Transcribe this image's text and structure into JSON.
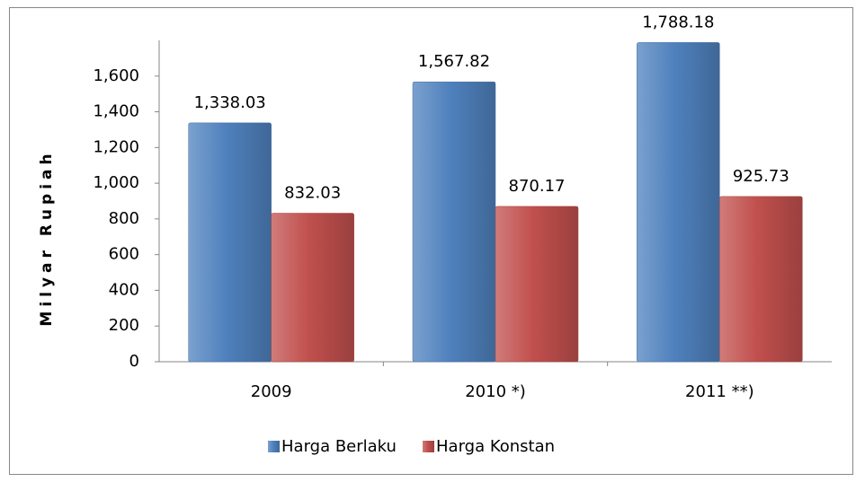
{
  "chart_data": {
    "type": "bar",
    "y_label": "Milyar Rupiah",
    "categories": [
      "2009",
      "2010 *)",
      "2011 **)"
    ],
    "series": [
      {
        "name": "Harga Berlaku",
        "color": "#4f81bd",
        "values": [
          1338.03,
          1567.82,
          1788.18
        ],
        "value_labels": [
          "1,338.03",
          "1,567.82",
          "1,788.18"
        ]
      },
      {
        "name": "Harga Konstan",
        "color": "#c0504d",
        "values": [
          832.03,
          870.17,
          925.73
        ],
        "value_labels": [
          "832.03",
          "870.17",
          "925.73"
        ]
      }
    ],
    "ylim": [
      0,
      1800
    ],
    "yticks": [
      0,
      200,
      400,
      600,
      800,
      {
        "value": 1000,
        "label": "1,000"
      },
      {
        "value": 1200,
        "label": "1,200"
      },
      {
        "value": 1400,
        "label": "1,400"
      },
      {
        "value": 1600,
        "label": "1,600"
      }
    ],
    "grid": false,
    "legend": "bottom"
  }
}
